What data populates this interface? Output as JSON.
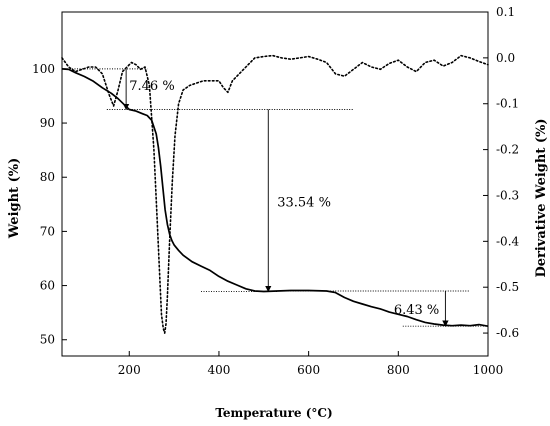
{
  "chart_data": {
    "type": "line",
    "xlabel": "Temperature (°C)",
    "ylabel_left": "Weight (%)",
    "ylabel_right": "Derivative Weight (%)",
    "xlim": [
      50,
      1000
    ],
    "ylim_left": [
      47,
      110.5
    ],
    "ylim_right": [
      -0.65,
      0.1
    ],
    "x_ticks": [
      200,
      400,
      600,
      800,
      1000
    ],
    "y_left_ticks": [
      50,
      60,
      70,
      80,
      90,
      100
    ],
    "y_right_ticks": [
      0.1,
      0.0,
      -0.1,
      -0.2,
      -0.3,
      -0.4,
      -0.5,
      -0.6
    ],
    "y_right_tick_labels": [
      "0.1",
      "0.0",
      "-0.1",
      "-0.2",
      "-0.3",
      "-0.4",
      "-0.5",
      "-0.6"
    ],
    "grid": false,
    "series": [
      {
        "axis": "left",
        "style": "solid",
        "x": [
          50,
          65,
          80,
          100,
          120,
          140,
          160,
          175,
          190,
          200,
          215,
          230,
          240,
          250,
          260,
          265,
          270,
          275,
          280,
          285,
          290,
          295,
          300,
          310,
          320,
          340,
          360,
          380,
          400,
          420,
          440,
          460,
          480,
          500,
          530,
          560,
          600,
          640,
          660,
          680,
          700,
          720,
          740,
          760,
          780,
          800,
          820,
          840,
          860,
          880,
          900,
          920,
          940,
          960,
          980,
          1000
        ],
        "y": [
          100,
          99.9,
          99.3,
          98.6,
          97.7,
          96.5,
          95.5,
          94.5,
          93.3,
          92.5,
          92.2,
          91.7,
          91.4,
          90.5,
          88,
          85.5,
          82,
          78,
          74,
          71.3,
          69.5,
          68.3,
          67.5,
          66.5,
          65.6,
          64.4,
          63.6,
          62.8,
          61.7,
          60.8,
          60.1,
          59.4,
          59.0,
          58.9,
          59.0,
          59.1,
          59.1,
          59.0,
          58.7,
          57.8,
          57.1,
          56.6,
          56.1,
          55.7,
          55.1,
          54.7,
          54.3,
          53.7,
          53.2,
          52.9,
          52.7,
          52.6,
          52.7,
          52.6,
          52.8,
          52.5
        ]
      },
      {
        "axis": "right",
        "style": "dotted",
        "x": [
          50,
          65,
          80,
          95,
          110,
          125,
          140,
          155,
          165,
          175,
          185,
          195,
          205,
          215,
          225,
          235,
          245,
          255,
          262,
          268,
          272,
          276,
          279,
          282,
          285,
          290,
          296,
          302,
          310,
          320,
          335,
          350,
          365,
          380,
          400,
          410,
          420,
          430,
          440,
          460,
          480,
          500,
          520,
          540,
          560,
          580,
          600,
          620,
          640,
          660,
          680,
          700,
          720,
          740,
          760,
          780,
          800,
          820,
          840,
          860,
          880,
          900,
          920,
          940,
          960,
          980,
          1000
        ],
        "y": [
          0.0,
          -0.02,
          -0.03,
          -0.025,
          -0.02,
          -0.02,
          -0.035,
          -0.08,
          -0.105,
          -0.07,
          -0.03,
          -0.02,
          -0.01,
          -0.015,
          -0.025,
          -0.02,
          -0.06,
          -0.2,
          -0.35,
          -0.48,
          -0.56,
          -0.59,
          -0.6,
          -0.58,
          -0.52,
          -0.4,
          -0.27,
          -0.17,
          -0.1,
          -0.07,
          -0.06,
          -0.055,
          -0.05,
          -0.05,
          -0.05,
          -0.065,
          -0.075,
          -0.05,
          -0.04,
          -0.02,
          0.0,
          0.003,
          0.005,
          0.0,
          -0.003,
          0.0,
          0.003,
          -0.003,
          -0.01,
          -0.035,
          -0.04,
          -0.025,
          -0.01,
          -0.02,
          -0.025,
          -0.012,
          -0.005,
          -0.02,
          -0.03,
          -0.01,
          -0.005,
          -0.018,
          -0.01,
          0.005,
          0.0,
          -0.008,
          -0.015
        ]
      }
    ],
    "annotations": [
      {
        "label": "7.46 %",
        "arrow_x": 193,
        "arrow_from_y": 100,
        "arrow_to_y": 92.5,
        "ref_lines": [
          {
            "y": 100,
            "x_from": 50,
            "x_to": 240
          },
          {
            "y": 92.5,
            "x_from": 150,
            "x_to": 250
          }
        ],
        "label_x": 200,
        "label_y": 97
      },
      {
        "label": "33.54 %",
        "arrow_x": 510,
        "arrow_from_y": 92.5,
        "arrow_to_y": 58.9,
        "ref_lines": [
          {
            "y": 92.5,
            "x_from": 250,
            "x_to": 700
          },
          {
            "y": 58.9,
            "x_from": 360,
            "x_to": 530
          }
        ],
        "label_x": 530,
        "label_y": 75.5
      },
      {
        "label": "6.43 %",
        "arrow_x": 905,
        "arrow_from_y": 59.0,
        "arrow_to_y": 52.5,
        "ref_lines": [
          {
            "y": 59.0,
            "x_from": 520,
            "x_to": 960
          },
          {
            "y": 52.5,
            "x_from": 810,
            "x_to": 1000
          }
        ],
        "label_x": 790,
        "label_y": 55.7
      }
    ]
  }
}
